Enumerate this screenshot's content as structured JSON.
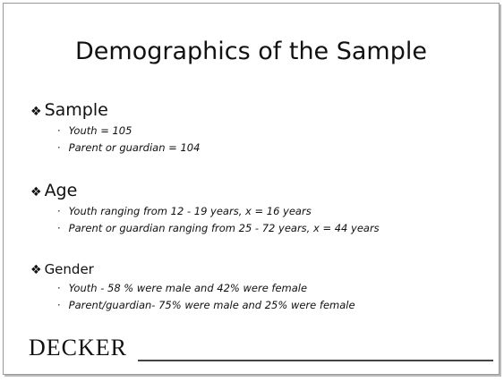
{
  "title": "Demographics of the Sample",
  "sections": [
    {
      "heading": "Sample",
      "bullets": [
        "Youth = 105",
        "Parent or guardian = 104"
      ]
    },
    {
      "heading": "Age",
      "bullets": [
        "Youth ranging from 12 - 19 years, x = 16 years",
        "Parent or guardian ranging from 25 - 72 years, x = 44 years"
      ]
    },
    {
      "heading": "Gender",
      "bullets": [
        "Youth - 58 % were male and 42% were female",
        "Parent/guardian- 75% were male and 25% were female"
      ]
    }
  ],
  "logo": "DECKER"
}
